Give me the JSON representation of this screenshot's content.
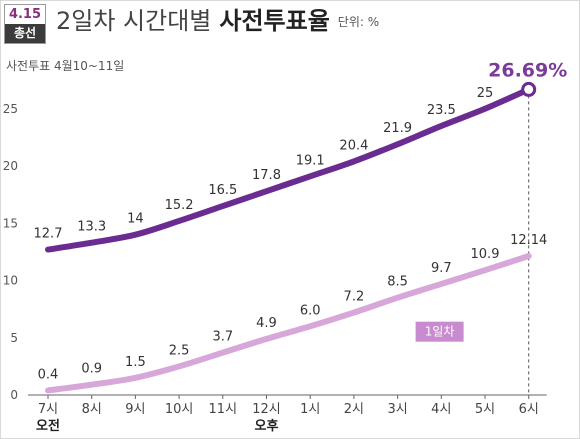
{
  "badge": {
    "line1": "4.15",
    "line2": "총선"
  },
  "header": {
    "title_part": "2일차 시간대별",
    "title_bold": "사전투표율",
    "unit": "단위: %"
  },
  "chart_data": {
    "type": "line",
    "subtitle": "사전투표 4월10~11일",
    "categories": [
      "7시",
      "8시",
      "9시",
      "10시",
      "11시",
      "12시",
      "1시",
      "2시",
      "3시",
      "4시",
      "5시",
      "6시"
    ],
    "period_labels": {
      "morning": "오전",
      "afternoon": "오후"
    },
    "yticks": [
      0,
      5,
      10,
      15,
      20,
      25
    ],
    "ylim": [
      0,
      27
    ],
    "grid": false,
    "series": [
      {
        "name": "",
        "color": "#6b2c91",
        "values": [
          12.7,
          13.3,
          14,
          15.2,
          16.5,
          17.8,
          19.1,
          20.4,
          21.9,
          23.5,
          25,
          26.69
        ],
        "labels": [
          "12.7",
          "13.3",
          "14",
          "15.2",
          "16.5",
          "17.8",
          "19.1",
          "20.4",
          "21.9",
          "23.5",
          "25",
          "26.69%"
        ]
      },
      {
        "name": "1일차",
        "color": "#d7a7d9",
        "values": [
          0.4,
          0.9,
          1.5,
          2.5,
          3.7,
          4.9,
          6.0,
          7.2,
          8.5,
          9.7,
          10.9,
          12.14
        ],
        "labels": [
          "0.4",
          "0.9",
          "1.5",
          "2.5",
          "3.7",
          "4.9",
          "6.0",
          "7.2",
          "8.5",
          "9.7",
          "10.9",
          "12.14"
        ]
      }
    ]
  }
}
